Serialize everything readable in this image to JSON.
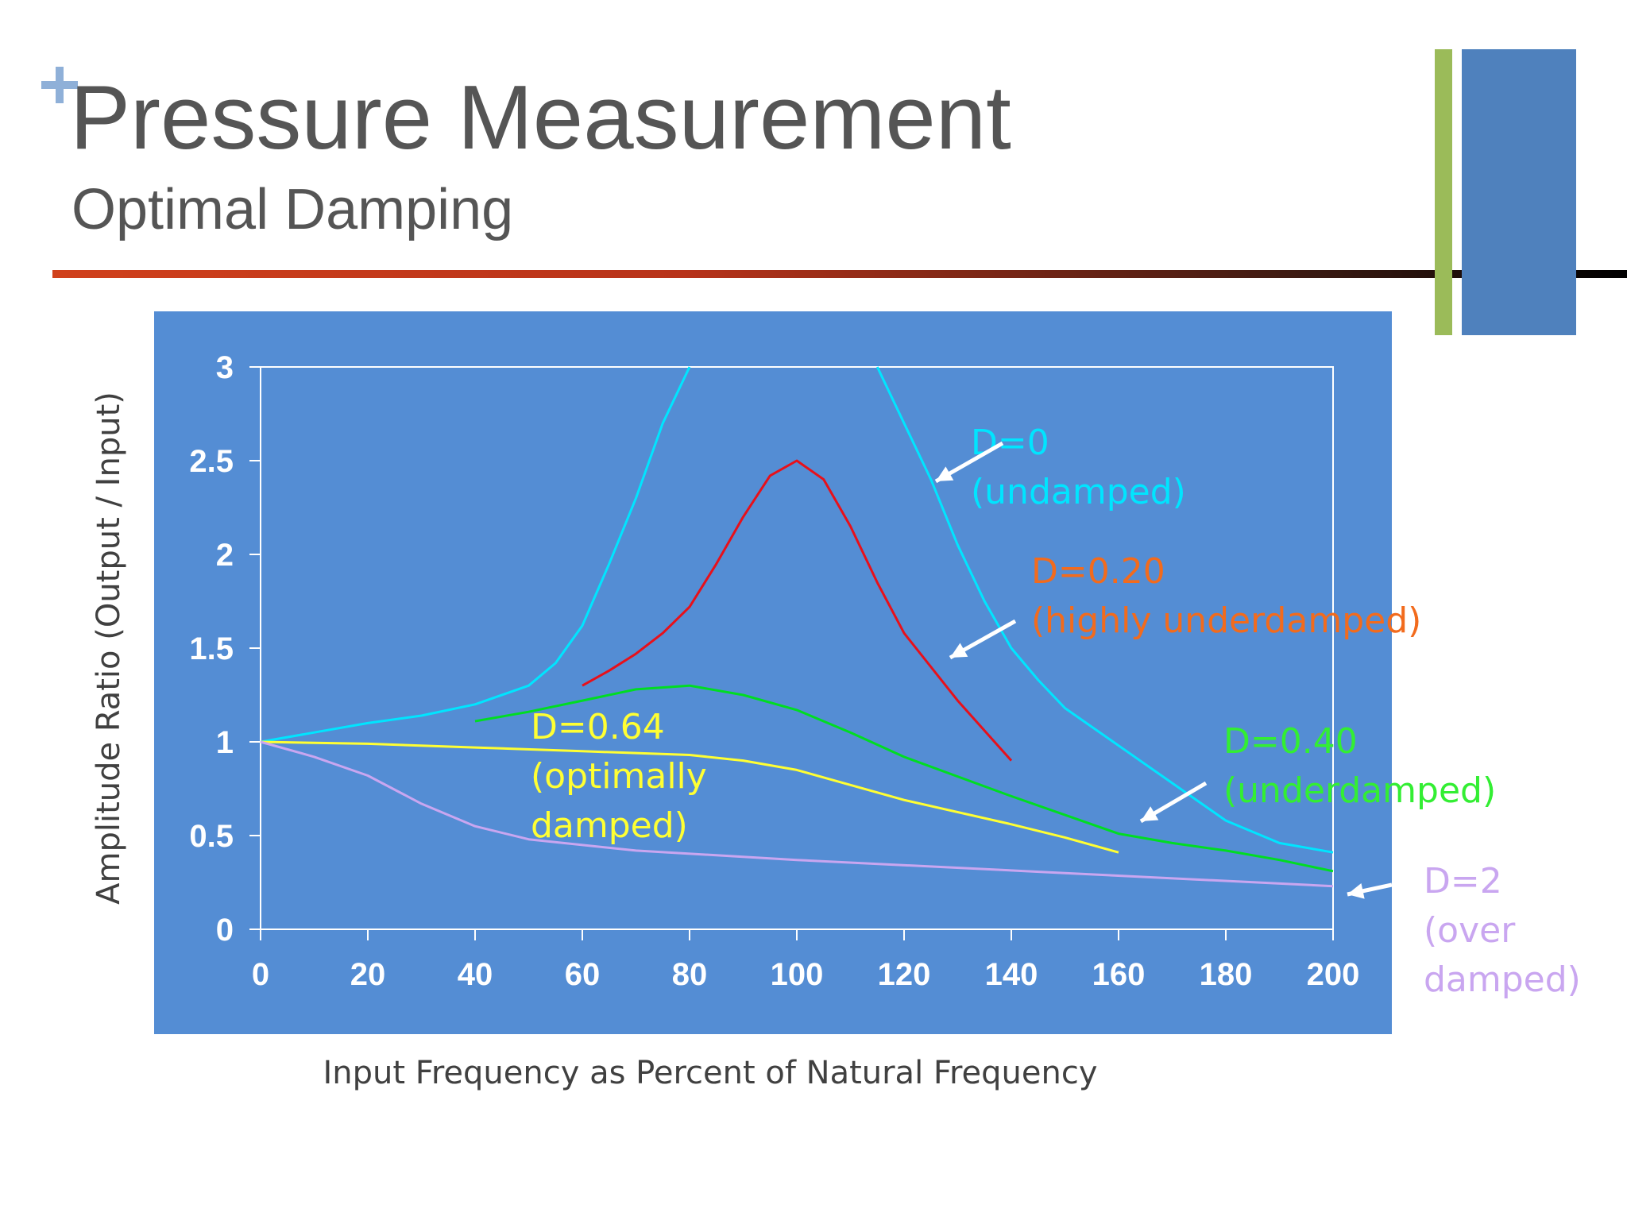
{
  "slide": {
    "title": "Pressure Measurement",
    "subtitle": "Optimal Damping"
  },
  "colors": {
    "plot_bg": "#548dd4",
    "deco_green": "#9bbb59",
    "deco_blue": "#4f81bd",
    "title_text": "#555555"
  },
  "chart_data": {
    "type": "line",
    "title": "",
    "xlabel": "Input Frequency as Percent of Natural Frequency",
    "ylabel": "Amplitude Ratio (Output / Input)",
    "xlim": [
      0,
      200
    ],
    "ylim": [
      0,
      3
    ],
    "xticks": [
      "0",
      "20",
      "40",
      "60",
      "80",
      "100",
      "120",
      "140",
      "160",
      "180",
      "200"
    ],
    "yticks": [
      "0",
      "0.5",
      "1",
      "1.5",
      "2",
      "2.5",
      "3"
    ],
    "grid": false,
    "series": [
      {
        "id": "d0",
        "color": "#00e5ff",
        "segments": [
          [
            [
              0,
              1.0
            ],
            [
              10,
              1.05
            ],
            [
              20,
              1.1
            ],
            [
              30,
              1.14
            ],
            [
              40,
              1.2
            ],
            [
              50,
              1.3
            ],
            [
              55,
              1.42
            ],
            [
              60,
              1.62
            ],
            [
              65,
              1.95
            ],
            [
              70,
              2.3
            ],
            [
              75,
              2.7
            ],
            [
              80,
              3.0
            ]
          ],
          [
            [
              115,
              3.0
            ],
            [
              120,
              2.7
            ],
            [
              125,
              2.4
            ],
            [
              130,
              2.05
            ],
            [
              135,
              1.75
            ],
            [
              140,
              1.5
            ],
            [
              145,
              1.33
            ],
            [
              150,
              1.18
            ],
            [
              160,
              0.98
            ],
            [
              170,
              0.78
            ],
            [
              180,
              0.58
            ],
            [
              190,
              0.46
            ],
            [
              200,
              0.41
            ]
          ]
        ]
      },
      {
        "id": "d020",
        "color": "#e8101a",
        "segments": [
          [
            [
              60,
              1.3
            ],
            [
              65,
              1.38
            ],
            [
              70,
              1.47
            ],
            [
              75,
              1.58
            ],
            [
              80,
              1.72
            ],
            [
              85,
              1.95
            ],
            [
              90,
              2.2
            ],
            [
              95,
              2.42
            ],
            [
              100,
              2.5
            ],
            [
              105,
              2.4
            ],
            [
              110,
              2.15
            ],
            [
              115,
              1.85
            ],
            [
              120,
              1.58
            ],
            [
              130,
              1.22
            ],
            [
              140,
              0.9
            ]
          ]
        ]
      },
      {
        "id": "d040",
        "color": "#00dd22",
        "segments": [
          [
            [
              40,
              1.11
            ],
            [
              50,
              1.16
            ],
            [
              60,
              1.22
            ],
            [
              70,
              1.28
            ],
            [
              80,
              1.3
            ],
            [
              90,
              1.25
            ],
            [
              100,
              1.17
            ],
            [
              110,
              1.05
            ],
            [
              120,
              0.92
            ],
            [
              140,
              0.71
            ],
            [
              160,
              0.51
            ],
            [
              170,
              0.46
            ],
            [
              180,
              0.42
            ],
            [
              190,
              0.37
            ],
            [
              200,
              0.31
            ]
          ]
        ]
      },
      {
        "id": "d064",
        "color": "#ffff33",
        "segments": [
          [
            [
              0,
              1.0
            ],
            [
              20,
              0.99
            ],
            [
              40,
              0.97
            ],
            [
              60,
              0.95
            ],
            [
              80,
              0.93
            ],
            [
              90,
              0.9
            ],
            [
              100,
              0.85
            ],
            [
              110,
              0.77
            ],
            [
              120,
              0.69
            ],
            [
              140,
              0.56
            ],
            [
              150,
              0.49
            ],
            [
              160,
              0.41
            ]
          ]
        ]
      },
      {
        "id": "d2",
        "color": "#c9a6f0",
        "segments": [
          [
            [
              0,
              1.0
            ],
            [
              10,
              0.92
            ],
            [
              20,
              0.82
            ],
            [
              30,
              0.67
            ],
            [
              40,
              0.55
            ],
            [
              50,
              0.48
            ],
            [
              70,
              0.42
            ],
            [
              100,
              0.37
            ],
            [
              150,
              0.3
            ],
            [
              200,
              0.23
            ]
          ]
        ]
      }
    ],
    "annotations": [
      {
        "id": "d0",
        "lines": [
          "D=0",
          "(undamped)"
        ],
        "color": "#00e5ff"
      },
      {
        "id": "d020",
        "lines": [
          "D=0.20",
          "(highly underdamped)"
        ],
        "color": "#f26b1d"
      },
      {
        "id": "d064",
        "lines": [
          "D=0.64",
          "(optimally",
          "damped)"
        ],
        "color": "#ffff33"
      },
      {
        "id": "d040",
        "lines": [
          "D=0.40",
          "(underdamped)"
        ],
        "color": "#33ee33"
      },
      {
        "id": "d2",
        "lines": [
          "D=2",
          "(over",
          "damped)"
        ],
        "color": "#c9a6f0"
      }
    ]
  }
}
